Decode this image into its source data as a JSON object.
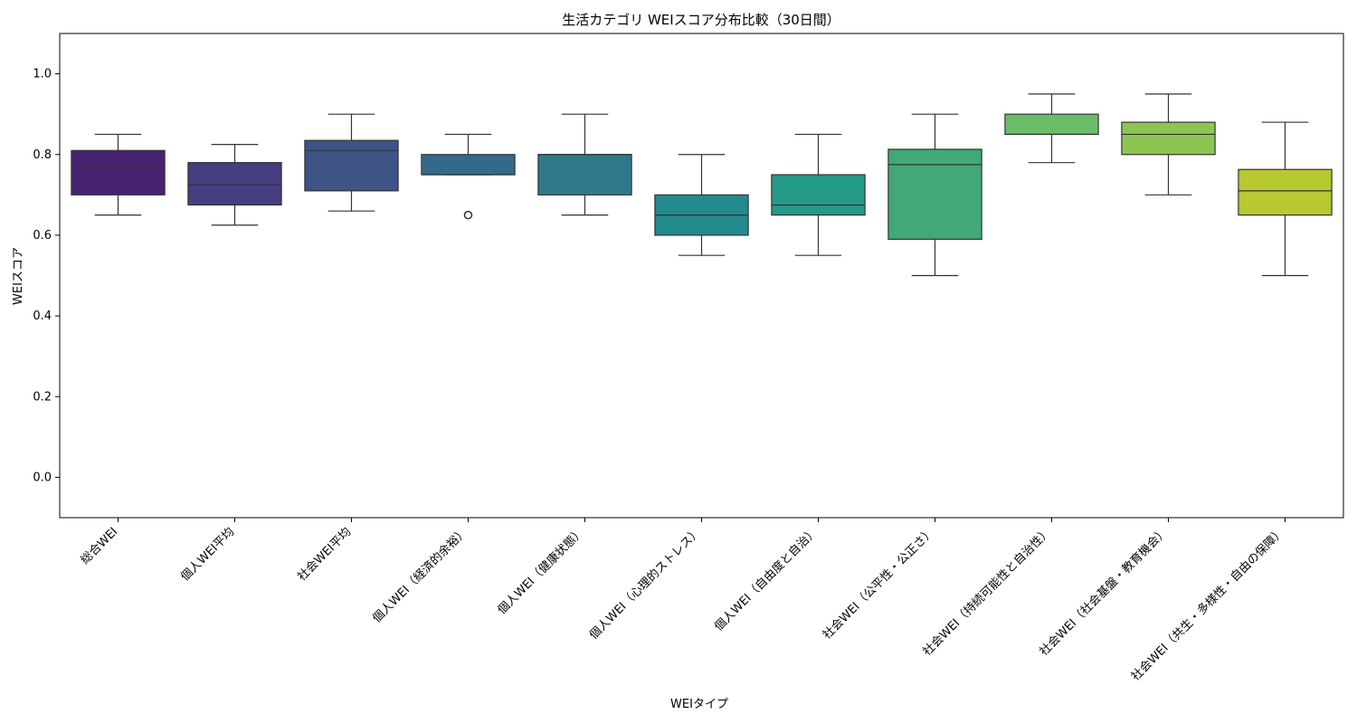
{
  "chart_data": {
    "type": "box",
    "title": "生活カテゴリ WEIスコア分布比較（30日間）",
    "xlabel": "WEIタイプ",
    "ylabel": "WEIスコア",
    "ylim": [
      -0.1,
      1.1
    ],
    "yticks": [
      "0.0",
      "0.2",
      "0.4",
      "0.6",
      "0.8",
      "1.0"
    ],
    "grid": false,
    "legend": "none",
    "categories": [
      "総合WEI",
      "個人WEI平均",
      "社会WEI平均",
      "個人WEI（経済的余裕）",
      "個人WEI（健康状態）",
      "個人WEI（心理的ストレス）",
      "個人WEI（自由度と自治）",
      "社会WEI（公平性・公正さ）",
      "社会WEI（持続可能性と自治性）",
      "社会WEI（社会基盤・教育機会）",
      "社会WEI（共生・多様性・自由の保障）"
    ],
    "boxes": [
      {
        "whisker_low": 0.65,
        "q1": 0.7,
        "median": 0.77,
        "q3": 0.81,
        "whisker_high": 0.85,
        "outliers": [],
        "color": "#482172"
      },
      {
        "whisker_low": 0.625,
        "q1": 0.675,
        "median": 0.725,
        "q3": 0.78,
        "whisker_high": 0.825,
        "outliers": [],
        "color": "#453e80"
      },
      {
        "whisker_low": 0.66,
        "q1": 0.71,
        "median": 0.81,
        "q3": 0.835,
        "whisker_high": 0.9,
        "outliers": [],
        "color": "#3e5487"
      },
      {
        "whisker_low": 0.75,
        "q1": 0.75,
        "median": 0.75,
        "q3": 0.8,
        "whisker_high": 0.85,
        "outliers": [
          0.65
        ],
        "color": "#33698b"
      },
      {
        "whisker_low": 0.65,
        "q1": 0.7,
        "median": 0.8,
        "q3": 0.8,
        "whisker_high": 0.9,
        "outliers": [],
        "color": "#2e7a8c"
      },
      {
        "whisker_low": 0.55,
        "q1": 0.6,
        "median": 0.65,
        "q3": 0.7,
        "whisker_high": 0.8,
        "outliers": [],
        "color": "#238a8d"
      },
      {
        "whisker_low": 0.55,
        "q1": 0.65,
        "median": 0.675,
        "q3": 0.75,
        "whisker_high": 0.85,
        "outliers": [],
        "color": "#259a89"
      },
      {
        "whisker_low": 0.5,
        "q1": 0.59,
        "median": 0.775,
        "q3": 0.813,
        "whisker_high": 0.9,
        "outliers": [],
        "color": "#41a876"
      },
      {
        "whisker_low": 0.78,
        "q1": 0.85,
        "median": 0.85,
        "q3": 0.9,
        "whisker_high": 0.95,
        "outliers": [],
        "color": "#6cbd68"
      },
      {
        "whisker_low": 0.7,
        "q1": 0.8,
        "median": 0.85,
        "q3": 0.88,
        "whisker_high": 0.95,
        "outliers": [],
        "color": "#8dc553"
      },
      {
        "whisker_low": 0.5,
        "q1": 0.65,
        "median": 0.71,
        "q3": 0.763,
        "whisker_high": 0.88,
        "outliers": [],
        "color": "#b8c831"
      }
    ]
  }
}
